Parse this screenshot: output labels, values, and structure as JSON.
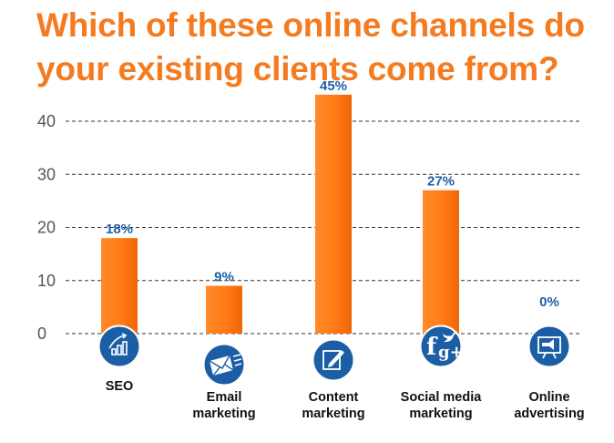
{
  "title_line1": "Which of these online channels do",
  "title_line2": "your existing clients come from?",
  "chart_data": {
    "type": "bar",
    "title": "Which of these online channels do your existing clients come from?",
    "categories": [
      [
        "SEO"
      ],
      [
        "Email",
        "marketing"
      ],
      [
        "Content",
        "marketing"
      ],
      [
        "Social media",
        "marketing"
      ],
      [
        "Online",
        "advertising"
      ]
    ],
    "values": [
      18,
      9,
      45,
      27,
      0
    ],
    "data_labels": [
      "18%",
      "9%",
      "45%",
      "27%",
      "0%"
    ],
    "yticks": [
      "0",
      "10",
      "20",
      "30",
      "40"
    ],
    "ylim": [
      0,
      40
    ],
    "grid": "dashed horizontal",
    "icons": [
      "chart-growth-icon",
      "email-icon",
      "edit-document-icon",
      "social-media-icon",
      "billboard-icon"
    ],
    "colors": {
      "bar": "#ff7b15",
      "bar_dark": "#f26a0c",
      "label": "#1d5fa8",
      "icon_circle": "#1b5ea5",
      "title": "#f47b20"
    }
  }
}
